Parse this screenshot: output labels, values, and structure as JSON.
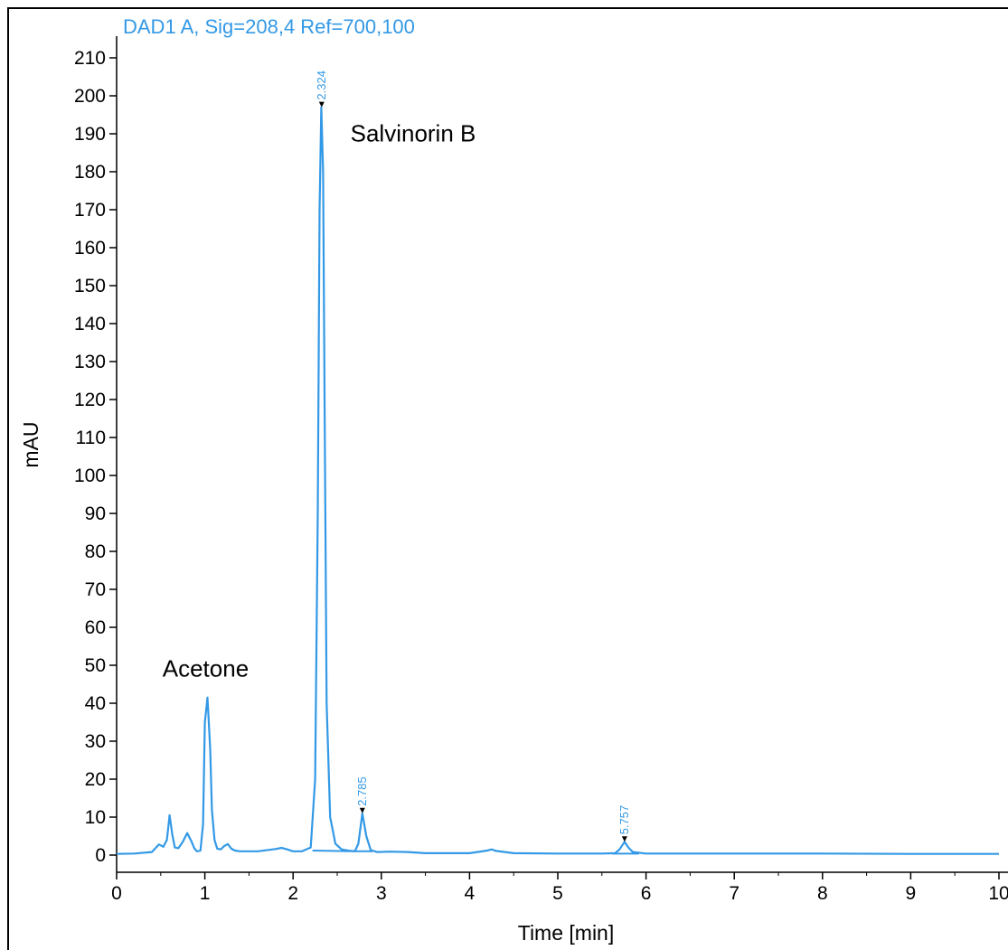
{
  "colors": {
    "trace": "#3399e6",
    "axis": "#000000"
  },
  "chart_data": {
    "type": "line",
    "title": "DAD1 A, Sig=208,4 Ref=700,100",
    "xlabel": "Time [min]",
    "ylabel": "mAU",
    "xlim": [
      0,
      10
    ],
    "ylim": [
      -3,
      215
    ],
    "x_ticks": [
      "0",
      "1",
      "2",
      "3",
      "4",
      "5",
      "6",
      "7",
      "8",
      "9",
      "10"
    ],
    "y_ticks": [
      "0",
      "10",
      "20",
      "30",
      "40",
      "50",
      "60",
      "70",
      "80",
      "90",
      "100",
      "110",
      "120",
      "130",
      "140",
      "150",
      "160",
      "170",
      "180",
      "190",
      "200",
      "210"
    ],
    "series": [
      {
        "x": [
          0,
          0.2,
          0.4,
          0.48,
          0.53,
          0.57,
          0.6,
          0.63,
          0.66,
          0.7,
          0.75,
          0.8,
          0.85,
          0.88,
          0.91,
          0.95,
          0.98,
          1.0,
          1.03,
          1.06,
          1.08,
          1.11,
          1.14,
          1.18,
          1.22,
          1.26,
          1.3,
          1.34,
          1.4,
          1.6,
          1.8,
          1.87,
          1.92,
          2.0,
          2.1,
          2.2,
          2.25,
          2.28,
          2.3,
          2.32,
          2.34,
          2.36,
          2.38,
          2.42,
          2.48,
          2.55,
          2.62,
          2.7,
          2.74,
          2.785,
          2.83,
          2.88,
          2.95,
          3.1,
          3.3,
          3.5,
          4.0,
          4.2,
          4.25,
          4.3,
          4.5,
          5.0,
          5.5,
          5.65,
          5.7,
          5.757,
          5.8,
          5.85,
          6.0,
          7.0,
          8.0,
          9.0,
          10.0
        ],
        "y": [
          0.3,
          0.4,
          0.8,
          2.8,
          2.2,
          4,
          10.5,
          5.5,
          2,
          1.8,
          3.5,
          5.8,
          3.5,
          1.8,
          1,
          1.2,
          8,
          35,
          41.5,
          28,
          12,
          4,
          1.7,
          1.5,
          2.4,
          2.9,
          1.7,
          1.2,
          1,
          1,
          1.6,
          1.9,
          1.6,
          1,
          1,
          2,
          20,
          90,
          170,
          197,
          180,
          110,
          40,
          10,
          3,
          1.5,
          1.2,
          1,
          3,
          11,
          5,
          1.3,
          0.8,
          0.9,
          0.8,
          0.5,
          0.5,
          1.2,
          1.5,
          1.1,
          0.5,
          0.4,
          0.4,
          0.5,
          1.5,
          3.5,
          2,
          0.8,
          0.4,
          0.4,
          0.4,
          0.3,
          0.3
        ]
      }
    ],
    "peaks": [
      {
        "rt": "2.324",
        "x": 2.324,
        "y": 197
      },
      {
        "rt": "2.785",
        "x": 2.785,
        "y": 11
      },
      {
        "rt": "5.757",
        "x": 5.757,
        "y": 3.5
      }
    ],
    "annotations": [
      {
        "text": "Salvinorin B",
        "x": 2.65,
        "y": 188
      },
      {
        "text": "Acetone",
        "x": 0.52,
        "y": 47
      }
    ]
  }
}
